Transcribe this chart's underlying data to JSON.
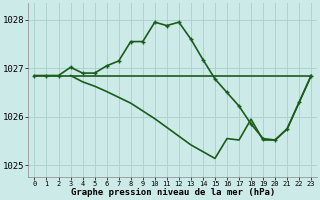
{
  "title": "Graphe pression niveau de la mer (hPa)",
  "background_color": "#cceae7",
  "grid_color": "#aad4d0",
  "line_color": "#1a5c1a",
  "ylim": [
    1024.75,
    1028.35
  ],
  "yticks": [
    1025,
    1026,
    1027,
    1028
  ],
  "xlim": [
    -0.5,
    23.5
  ],
  "series1_x": [
    0,
    1,
    2,
    3,
    4,
    5,
    6,
    7,
    8,
    9,
    10,
    11,
    12,
    13,
    14,
    15,
    16,
    17,
    18,
    19,
    20,
    21,
    22,
    23
  ],
  "series1_y": [
    1026.85,
    1026.85,
    1026.85,
    1027.02,
    1026.9,
    1026.9,
    1027.05,
    1027.15,
    1027.55,
    1027.55,
    1027.95,
    1027.88,
    1027.95,
    1027.6,
    1027.18,
    1026.78,
    1026.5,
    1026.22,
    1025.85,
    1025.55,
    1025.52,
    1025.75,
    1026.3,
    1026.85
  ],
  "series2_x": [
    0,
    23
  ],
  "series2_y": [
    1026.85,
    1026.85
  ],
  "series3_x": [
    3,
    4,
    5,
    6,
    7,
    8,
    9,
    10,
    11,
    12,
    13,
    14,
    15,
    16,
    17,
    18,
    19,
    20,
    21,
    22,
    23
  ],
  "series3_y": [
    1026.85,
    1026.72,
    1026.63,
    1026.52,
    1026.4,
    1026.28,
    1026.12,
    1025.96,
    1025.78,
    1025.6,
    1025.42,
    1025.28,
    1025.14,
    1025.55,
    1025.52,
    1025.95,
    1025.52,
    1025.52,
    1025.75,
    1026.3,
    1026.85
  ]
}
